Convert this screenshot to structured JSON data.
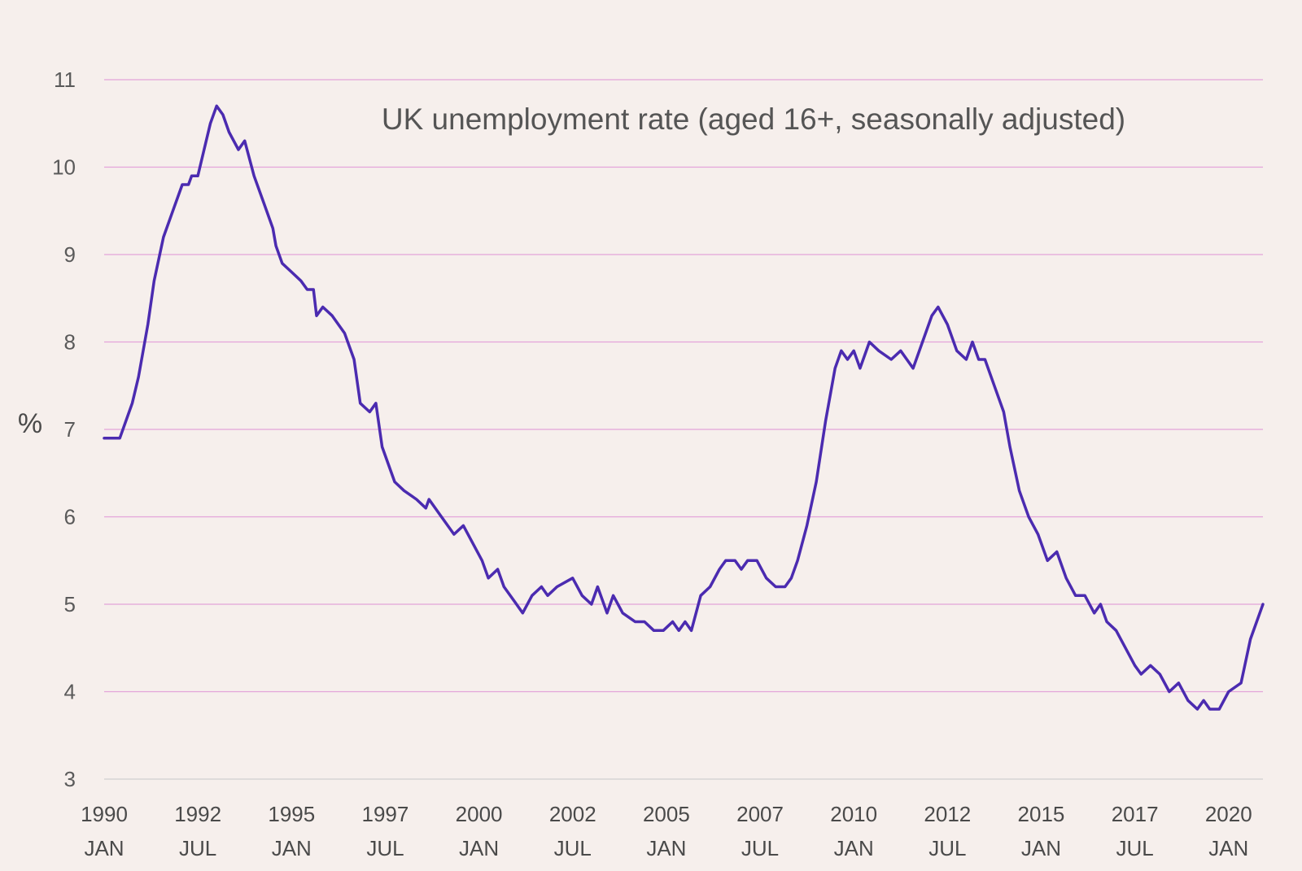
{
  "chart_data": {
    "type": "line",
    "title": "UK unemployment rate (aged 16+, seasonally adjusted)",
    "ylabel": "%",
    "xlabel": "",
    "ylim": [
      3,
      11
    ],
    "yticks": [
      3,
      4,
      5,
      6,
      7,
      8,
      9,
      10,
      11
    ],
    "grid": true,
    "x_tick_labels": [
      {
        "year": "1990",
        "month": "JAN",
        "date": "1990-01"
      },
      {
        "year": "1992",
        "month": "JUL",
        "date": "1992-07"
      },
      {
        "year": "1995",
        "month": "JAN",
        "date": "1995-01"
      },
      {
        "year": "1997",
        "month": "JUL",
        "date": "1997-07"
      },
      {
        "year": "2000",
        "month": "JAN",
        "date": "2000-01"
      },
      {
        "year": "2002",
        "month": "JUL",
        "date": "2002-07"
      },
      {
        "year": "2005",
        "month": "JAN",
        "date": "2005-01"
      },
      {
        "year": "2007",
        "month": "JUL",
        "date": "2007-07"
      },
      {
        "year": "2010",
        "month": "JAN",
        "date": "2010-01"
      },
      {
        "year": "2012",
        "month": "JUL",
        "date": "2012-07"
      },
      {
        "year": "2015",
        "month": "JAN",
        "date": "2015-01"
      },
      {
        "year": "2017",
        "month": "JUL",
        "date": "2017-07"
      },
      {
        "year": "2020",
        "month": "JAN",
        "date": "2020-01"
      }
    ],
    "xlim": [
      "1990-01",
      "2020-12"
    ],
    "series": [
      {
        "name": "",
        "color": "#4b2bb0",
        "points": [
          [
            "1990-01",
            6.9
          ],
          [
            "1990-06",
            6.9
          ],
          [
            "1990-10",
            7.3
          ],
          [
            "1990-12",
            7.6
          ],
          [
            "1991-03",
            8.2
          ],
          [
            "1991-05",
            8.7
          ],
          [
            "1991-08",
            9.2
          ],
          [
            "1991-11",
            9.5
          ],
          [
            "1992-02",
            9.8
          ],
          [
            "1992-04",
            9.8
          ],
          [
            "1992-05",
            9.9
          ],
          [
            "1992-07",
            9.9
          ],
          [
            "1992-09",
            10.2
          ],
          [
            "1992-11",
            10.5
          ],
          [
            "1993-01",
            10.7
          ],
          [
            "1993-03",
            10.6
          ],
          [
            "1993-05",
            10.4
          ],
          [
            "1993-08",
            10.2
          ],
          [
            "1993-10",
            10.3
          ],
          [
            "1994-01",
            9.9
          ],
          [
            "1994-04",
            9.6
          ],
          [
            "1994-07",
            9.3
          ],
          [
            "1994-08",
            9.1
          ],
          [
            "1994-10",
            8.9
          ],
          [
            "1995-01",
            8.8
          ],
          [
            "1995-04",
            8.7
          ],
          [
            "1995-06",
            8.6
          ],
          [
            "1995-08",
            8.6
          ],
          [
            "1995-09",
            8.3
          ],
          [
            "1995-11",
            8.4
          ],
          [
            "1996-02",
            8.3
          ],
          [
            "1996-06",
            8.1
          ],
          [
            "1996-09",
            7.8
          ],
          [
            "1996-11",
            7.3
          ],
          [
            "1997-02",
            7.2
          ],
          [
            "1997-04",
            7.3
          ],
          [
            "1997-06",
            6.8
          ],
          [
            "1997-10",
            6.4
          ],
          [
            "1998-01",
            6.3
          ],
          [
            "1998-05",
            6.2
          ],
          [
            "1998-08",
            6.1
          ],
          [
            "1998-09",
            6.2
          ],
          [
            "1999-01",
            6.0
          ],
          [
            "1999-05",
            5.8
          ],
          [
            "1999-08",
            5.9
          ],
          [
            "2000-02",
            5.5
          ],
          [
            "2000-04",
            5.3
          ],
          [
            "2000-07",
            5.4
          ],
          [
            "2000-09",
            5.2
          ],
          [
            "2001-01",
            5.0
          ],
          [
            "2001-03",
            4.9
          ],
          [
            "2001-06",
            5.1
          ],
          [
            "2001-09",
            5.2
          ],
          [
            "2001-11",
            5.1
          ],
          [
            "2002-02",
            5.2
          ],
          [
            "2002-07",
            5.3
          ],
          [
            "2002-10",
            5.1
          ],
          [
            "2003-01",
            5.0
          ],
          [
            "2003-03",
            5.2
          ],
          [
            "2003-06",
            4.9
          ],
          [
            "2003-08",
            5.1
          ],
          [
            "2003-11",
            4.9
          ],
          [
            "2004-03",
            4.8
          ],
          [
            "2004-06",
            4.8
          ],
          [
            "2004-09",
            4.7
          ],
          [
            "2004-12",
            4.7
          ],
          [
            "2005-03",
            4.8
          ],
          [
            "2005-05",
            4.7
          ],
          [
            "2005-07",
            4.8
          ],
          [
            "2005-09",
            4.7
          ],
          [
            "2005-12",
            5.1
          ],
          [
            "2006-03",
            5.2
          ],
          [
            "2006-06",
            5.4
          ],
          [
            "2006-08",
            5.5
          ],
          [
            "2006-11",
            5.5
          ],
          [
            "2007-01",
            5.4
          ],
          [
            "2007-03",
            5.5
          ],
          [
            "2007-06",
            5.5
          ],
          [
            "2007-09",
            5.3
          ],
          [
            "2007-12",
            5.2
          ],
          [
            "2008-03",
            5.2
          ],
          [
            "2008-05",
            5.3
          ],
          [
            "2008-07",
            5.5
          ],
          [
            "2008-10",
            5.9
          ],
          [
            "2009-01",
            6.4
          ],
          [
            "2009-04",
            7.1
          ],
          [
            "2009-07",
            7.7
          ],
          [
            "2009-09",
            7.9
          ],
          [
            "2009-11",
            7.8
          ],
          [
            "2010-01",
            7.9
          ],
          [
            "2010-03",
            7.7
          ],
          [
            "2010-06",
            8.0
          ],
          [
            "2010-09",
            7.9
          ],
          [
            "2011-01",
            7.8
          ],
          [
            "2011-04",
            7.9
          ],
          [
            "2011-06",
            7.8
          ],
          [
            "2011-08",
            7.7
          ],
          [
            "2011-11",
            8.0
          ],
          [
            "2012-02",
            8.3
          ],
          [
            "2012-04",
            8.4
          ],
          [
            "2012-07",
            8.2
          ],
          [
            "2012-10",
            7.9
          ],
          [
            "2013-01",
            7.8
          ],
          [
            "2013-03",
            8.0
          ],
          [
            "2013-05",
            7.8
          ],
          [
            "2013-07",
            7.8
          ],
          [
            "2013-10",
            7.5
          ],
          [
            "2014-01",
            7.2
          ],
          [
            "2014-03",
            6.8
          ],
          [
            "2014-06",
            6.3
          ],
          [
            "2014-09",
            6.0
          ],
          [
            "2014-12",
            5.8
          ],
          [
            "2015-03",
            5.5
          ],
          [
            "2015-06",
            5.6
          ],
          [
            "2015-09",
            5.3
          ],
          [
            "2015-12",
            5.1
          ],
          [
            "2016-03",
            5.1
          ],
          [
            "2016-06",
            4.9
          ],
          [
            "2016-08",
            5.0
          ],
          [
            "2016-10",
            4.8
          ],
          [
            "2017-01",
            4.7
          ],
          [
            "2017-04",
            4.5
          ],
          [
            "2017-07",
            4.3
          ],
          [
            "2017-09",
            4.2
          ],
          [
            "2017-12",
            4.3
          ],
          [
            "2018-03",
            4.2
          ],
          [
            "2018-06",
            4.0
          ],
          [
            "2018-09",
            4.1
          ],
          [
            "2018-12",
            3.9
          ],
          [
            "2019-03",
            3.8
          ],
          [
            "2019-05",
            3.9
          ],
          [
            "2019-07",
            3.8
          ],
          [
            "2019-10",
            3.8
          ],
          [
            "2020-01",
            4.0
          ],
          [
            "2020-05",
            4.1
          ],
          [
            "2020-08",
            4.6
          ],
          [
            "2020-10",
            4.8
          ],
          [
            "2020-12",
            5.0
          ]
        ]
      }
    ]
  }
}
